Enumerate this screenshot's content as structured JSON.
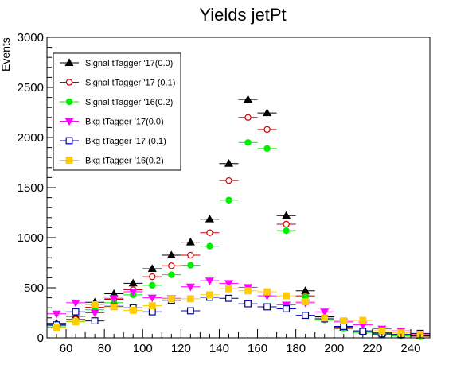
{
  "chart_data": {
    "type": "scatter",
    "title": "Yields jetPt",
    "xlabel": "",
    "ylabel": "Events",
    "xlim": [
      50,
      250
    ],
    "ylim": [
      0,
      3000
    ],
    "x_ticks": [
      60,
      80,
      100,
      120,
      140,
      160,
      180,
      200,
      220,
      240
    ],
    "y_ticks": [
      0,
      500,
      1000,
      1500,
      2000,
      2500,
      3000
    ],
    "x_tick_labels": [
      "60",
      "80",
      "100",
      "120",
      "140",
      "160",
      "180",
      "200",
      "220",
      "240"
    ],
    "y_tick_labels": [
      "0",
      "500",
      "1000",
      "1500",
      "2000",
      "2500",
      "3000"
    ],
    "bin_width": 10,
    "x": [
      55,
      65,
      75,
      85,
      95,
      105,
      115,
      125,
      135,
      145,
      155,
      165,
      175,
      185,
      195,
      205,
      215,
      225,
      235,
      245
    ],
    "legend_position": "top-left",
    "series": [
      {
        "name": "Signal tTagger '17(0.0)",
        "color": "#000000",
        "marker": "triangle-up",
        "filled": true,
        "values": [
          145,
          215,
          355,
          440,
          545,
          690,
          825,
          955,
          1185,
          1740,
          2380,
          2245,
          1220,
          470,
          210,
          105,
          70,
          50,
          30,
          20
        ]
      },
      {
        "name": "Signal tTagger '17 (0.1)",
        "color": "#cc0000",
        "marker": "circle",
        "filled": false,
        "values": [
          125,
          185,
          305,
          385,
          480,
          610,
          720,
          825,
          1050,
          1570,
          2200,
          2080,
          1135,
          420,
          190,
          95,
          60,
          40,
          25,
          15
        ]
      },
      {
        "name": "Signal tTagger '16(0.2)",
        "color": "#00ee00",
        "marker": "circle",
        "filled": true,
        "values": [
          110,
          165,
          280,
          350,
          430,
          525,
          630,
          725,
          915,
          1375,
          1950,
          1890,
          1070,
          410,
          180,
          90,
          55,
          35,
          20,
          12
        ]
      },
      {
        "name": "Bkg tTagger '17(0.0)",
        "color": "#ff00ff",
        "marker": "triangle-down",
        "filled": true,
        "values": [
          240,
          350,
          250,
          395,
          460,
          400,
          395,
          510,
          570,
          545,
          505,
          420,
          330,
          350,
          260,
          160,
          130,
          90,
          70,
          40
        ]
      },
      {
        "name": "Bkg tTagger '17 (0.1)",
        "color": "#0000aa",
        "marker": "square",
        "filled": false,
        "values": [
          130,
          260,
          170,
          315,
          300,
          260,
          375,
          270,
          405,
          395,
          340,
          310,
          290,
          225,
          190,
          115,
          65,
          40,
          35,
          45
        ]
      },
      {
        "name": "Bkg tTagger '16(0.2)",
        "color": "#ffcc00",
        "marker": "square",
        "filled": true,
        "values": [
          100,
          160,
          330,
          310,
          275,
          320,
          390,
          390,
          430,
          490,
          470,
          460,
          420,
          360,
          200,
          170,
          175,
          70,
          50,
          30
        ]
      }
    ]
  }
}
